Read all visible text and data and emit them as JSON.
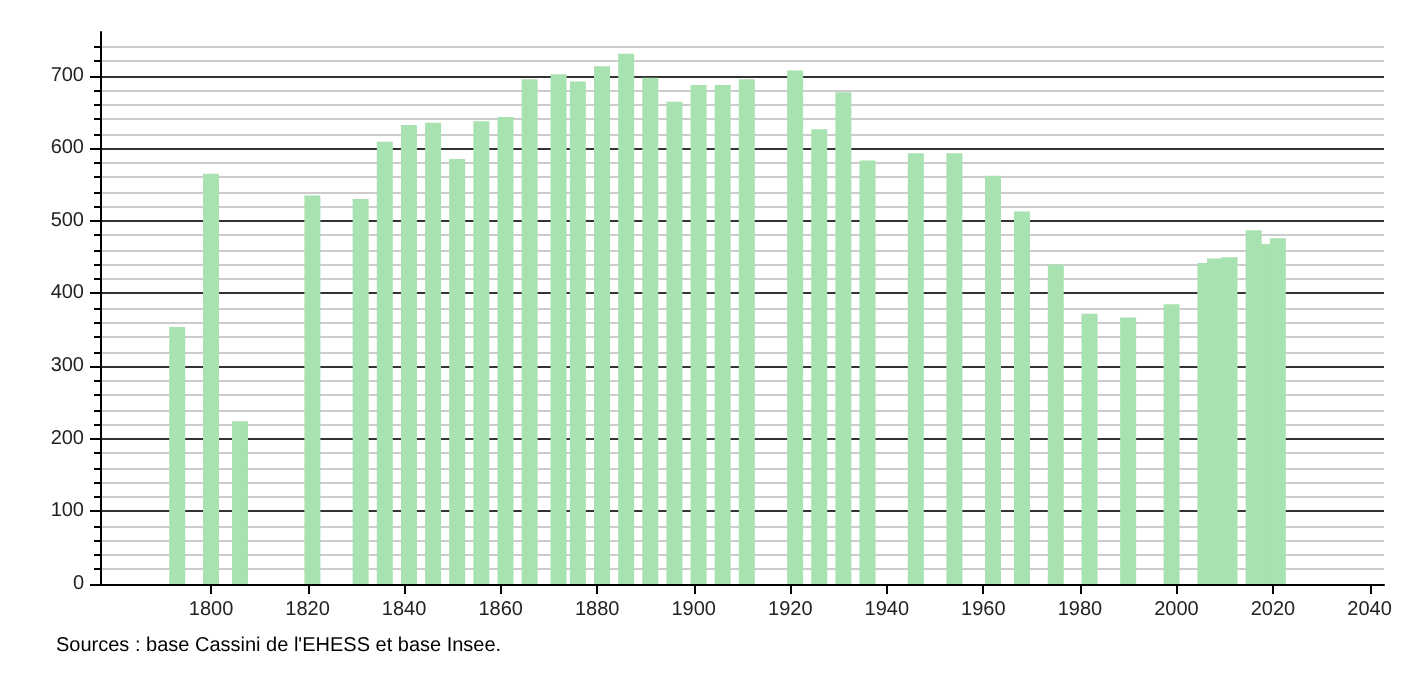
{
  "chart_data": {
    "type": "bar",
    "x": [
      1793,
      1800,
      1806,
      1821,
      1831,
      1836,
      1841,
      1846,
      1851,
      1856,
      1861,
      1866,
      1872,
      1876,
      1881,
      1886,
      1891,
      1896,
      1901,
      1906,
      1911,
      1921,
      1926,
      1931,
      1936,
      1946,
      1954,
      1962,
      1968,
      1975,
      1982,
      1990,
      1999,
      2006,
      2008,
      2011,
      2016,
      2019,
      2021
    ],
    "values": [
      354,
      565,
      224,
      535,
      530,
      609,
      632,
      635,
      585,
      637,
      643,
      695,
      702,
      692,
      713,
      730,
      697,
      664,
      687,
      687,
      695,
      707,
      626,
      677,
      583,
      593,
      593,
      562,
      513,
      440,
      372,
      367,
      385,
      442,
      448,
      450,
      487,
      468,
      476
    ],
    "color": "#a8e2b0",
    "xlim": [
      1777,
      2043
    ],
    "xticks": [
      1800,
      1820,
      1840,
      1860,
      1880,
      1900,
      1920,
      1940,
      1960,
      1980,
      2000,
      2020,
      2040
    ],
    "ylim": [
      0,
      760
    ],
    "yticks": [
      0,
      100,
      200,
      300,
      400,
      500,
      600,
      700
    ],
    "grid": "y",
    "annotations": [
      "Sources : base Cassini de l'EHESS et base Insee."
    ]
  }
}
